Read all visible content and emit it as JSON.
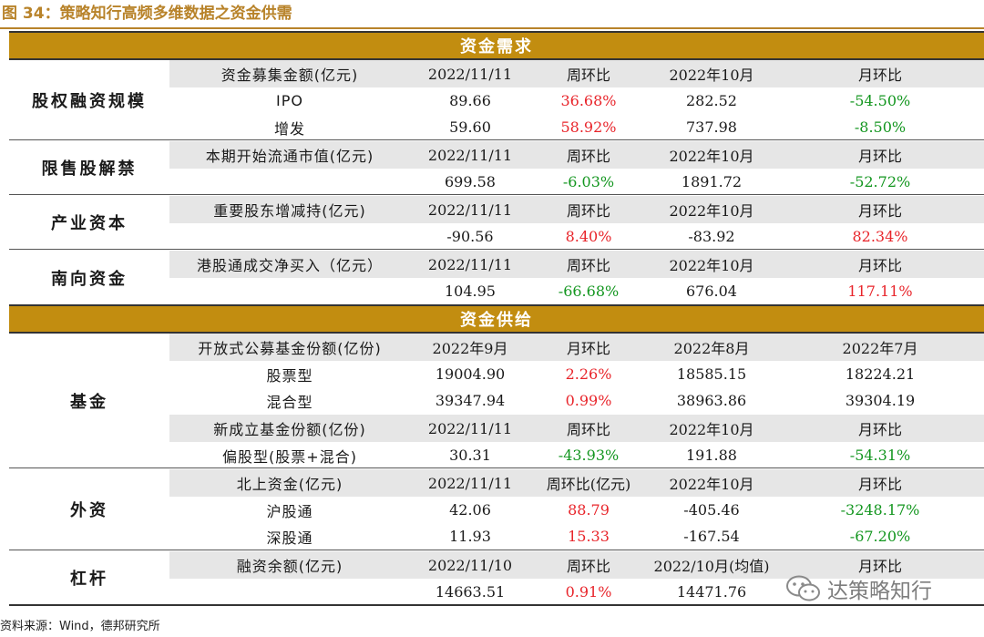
{
  "figure_title": "图 34：策略知行高频多维数据之资金供需",
  "source": "资料来源：Wind，德邦研究所",
  "watermark": "达策略知行",
  "demand": {
    "band_title": "资金需求",
    "sections": [
      {
        "category": "股权融资规模",
        "header": [
          "资金募集金额(亿元)",
          "2022/11/11",
          "周环比",
          "2022年10月",
          "月环比"
        ],
        "rows": [
          [
            "IPO",
            "89.66",
            "36.68%",
            "282.52",
            "-54.50%"
          ],
          [
            "增发",
            "59.60",
            "58.92%",
            "737.98",
            "-8.50%"
          ]
        ]
      },
      {
        "category": "限售股解禁",
        "header": [
          "本期开始流通市值(亿元)",
          "2022/11/11",
          "周环比",
          "2022年10月",
          "月环比"
        ],
        "rows": [
          [
            "",
            "699.58",
            "-6.03%",
            "1891.72",
            "-52.72%"
          ]
        ]
      },
      {
        "category": "产业资本",
        "header": [
          "重要股东增减持(亿元)",
          "2022/11/11",
          "周环比",
          "2022年10月",
          "月环比"
        ],
        "rows": [
          [
            "",
            "-90.56",
            "8.40%",
            "-83.92",
            "82.34%"
          ]
        ]
      },
      {
        "category": "南向资金",
        "header": [
          "港股通成交净买入（亿元）",
          "2022/11/11",
          "周环比",
          "2022年10月",
          "月环比"
        ],
        "rows": [
          [
            "",
            "104.95",
            "-66.68%",
            "676.04",
            "117.11%"
          ]
        ]
      }
    ]
  },
  "supply": {
    "band_title": "资金供给",
    "sections": [
      {
        "category": "基金",
        "header": [
          "开放式公募基金份额(亿份)",
          "2022年9月",
          "月环比",
          "2022年8月",
          "2022年7月"
        ],
        "rows": [
          [
            "股票型",
            "19004.90",
            "2.26%",
            "18585.15",
            "18224.21"
          ],
          [
            "混合型",
            "39347.94",
            "0.99%",
            "38963.86",
            "39304.19"
          ]
        ],
        "header2": [
          "新成立基金份额(亿份)",
          "2022/11/11",
          "周环比",
          "2022年10月",
          "月环比"
        ],
        "rows2": [
          [
            "偏股型(股票+混合)",
            "30.31",
            "-43.93%",
            "191.88",
            "-54.31%"
          ]
        ]
      },
      {
        "category": "外资",
        "header": [
          "北上资金(亿元)",
          "2022/11/11",
          "周环比(亿元)",
          "2022年10月",
          "月环比"
        ],
        "rows": [
          [
            "沪股通",
            "42.06",
            "88.79",
            "-405.46",
            "-3248.17%"
          ],
          [
            "深股通",
            "11.93",
            "15.33",
            "-167.54",
            "-67.20%"
          ]
        ]
      },
      {
        "category": "杠杆",
        "header": [
          "融资余额(亿元)",
          "2022/11/10",
          "周环比",
          "2022/10月(均值)",
          "月环比"
        ],
        "rows": [
          [
            "",
            "14663.51",
            "0.91%",
            "14471.76",
            ""
          ]
        ]
      }
    ]
  },
  "colors": {
    "band": "#c28d10",
    "title": "#b8832a",
    "header_bg": "#e6e6e6",
    "positive": "#e8242a",
    "negative": "#13961f"
  }
}
